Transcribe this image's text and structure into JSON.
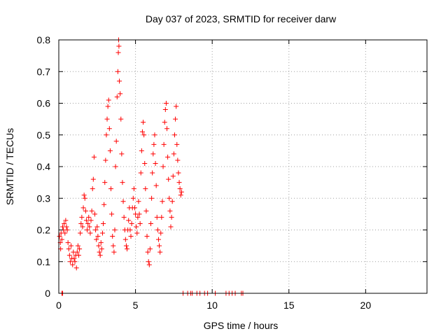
{
  "chart_data": {
    "type": "scatter",
    "title": "Day 037 of 2023, SRMTID for receiver darw",
    "xlabel": "GPS time / hours",
    "ylabel": "SRMTID / TECUs",
    "xlim": [
      0,
      24
    ],
    "ylim": [
      0,
      0.8
    ],
    "x_ticks": [
      0,
      5,
      10,
      15,
      20
    ],
    "x_tick_labels": [
      "0",
      "5",
      "10",
      "15",
      "20"
    ],
    "y_ticks": [
      0,
      0.1,
      0.2,
      0.3,
      0.4,
      0.5,
      0.6,
      0.7,
      0.8
    ],
    "y_tick_labels": [
      "0",
      "0.1",
      "0.2",
      "0.3",
      "0.4",
      "0.5",
      "0.6",
      "0.7",
      "0.8"
    ],
    "grid": true,
    "marker": "+",
    "marker_color": "#ff0000",
    "series": [
      {
        "name": "SRMTID",
        "points": [
          [
            0.05,
            0.18
          ],
          [
            0.1,
            0.16
          ],
          [
            0.12,
            0.14
          ],
          [
            0.15,
            0.19
          ],
          [
            0.2,
            0.17
          ],
          [
            0.25,
            0.21
          ],
          [
            0.3,
            0.2
          ],
          [
            0.35,
            0.22
          ],
          [
            0.4,
            0.19
          ],
          [
            0.45,
            0.23
          ],
          [
            0.5,
            0.21
          ],
          [
            0.55,
            0.2
          ],
          [
            0.6,
            0.16
          ],
          [
            0.65,
            0.14
          ],
          [
            0.7,
            0.12
          ],
          [
            0.75,
            0.1
          ],
          [
            0.8,
            0.15
          ],
          [
            0.85,
            0.11
          ],
          [
            0.9,
            0.09
          ],
          [
            0.95,
            0.13
          ],
          [
            1.0,
            0.11
          ],
          [
            1.05,
            0.1
          ],
          [
            1.1,
            0.12
          ],
          [
            1.15,
            0.08
          ],
          [
            1.2,
            0.13
          ],
          [
            1.25,
            0.15
          ],
          [
            1.3,
            0.12
          ],
          [
            1.35,
            0.14
          ],
          [
            1.4,
            0.19
          ],
          [
            1.45,
            0.22
          ],
          [
            1.5,
            0.24
          ],
          [
            1.55,
            0.21
          ],
          [
            1.6,
            0.27
          ],
          [
            1.65,
            0.31
          ],
          [
            1.7,
            0.3
          ],
          [
            1.75,
            0.26
          ],
          [
            1.8,
            0.23
          ],
          [
            1.85,
            0.2
          ],
          [
            1.9,
            0.22
          ],
          [
            1.95,
            0.24
          ],
          [
            2.0,
            0.21
          ],
          [
            2.05,
            0.19
          ],
          [
            2.1,
            0.23
          ],
          [
            2.15,
            0.26
          ],
          [
            2.2,
            0.33
          ],
          [
            2.25,
            0.36
          ],
          [
            2.3,
            0.43
          ],
          [
            2.35,
            0.25
          ],
          [
            2.4,
            0.2
          ],
          [
            2.45,
            0.17
          ],
          [
            2.5,
            0.21
          ],
          [
            2.55,
            0.18
          ],
          [
            2.6,
            0.15
          ],
          [
            2.65,
            0.13
          ],
          [
            2.7,
            0.12
          ],
          [
            2.75,
            0.16
          ],
          [
            2.8,
            0.14
          ],
          [
            2.85,
            0.19
          ],
          [
            2.9,
            0.22
          ],
          [
            2.95,
            0.28
          ],
          [
            3.0,
            0.35
          ],
          [
            3.05,
            0.42
          ],
          [
            3.1,
            0.5
          ],
          [
            3.15,
            0.55
          ],
          [
            3.2,
            0.59
          ],
          [
            3.25,
            0.61
          ],
          [
            3.3,
            0.52
          ],
          [
            3.35,
            0.45
          ],
          [
            3.4,
            0.33
          ],
          [
            3.45,
            0.25
          ],
          [
            3.5,
            0.18
          ],
          [
            3.55,
            0.15
          ],
          [
            3.6,
            0.13
          ],
          [
            3.65,
            0.2
          ],
          [
            3.7,
            0.4
          ],
          [
            3.75,
            0.48
          ],
          [
            3.8,
            0.62
          ],
          [
            3.85,
            0.7
          ],
          [
            3.88,
            0.76
          ],
          [
            3.9,
            0.8
          ],
          [
            3.92,
            0.78
          ],
          [
            3.95,
            0.67
          ],
          [
            4.0,
            0.63
          ],
          [
            4.05,
            0.55
          ],
          [
            4.1,
            0.44
          ],
          [
            4.15,
            0.35
          ],
          [
            4.2,
            0.29
          ],
          [
            4.25,
            0.24
          ],
          [
            4.3,
            0.2
          ],
          [
            4.35,
            0.17
          ],
          [
            4.4,
            0.15
          ],
          [
            4.45,
            0.14
          ],
          [
            4.5,
            0.2
          ],
          [
            4.55,
            0.23
          ],
          [
            4.6,
            0.27
          ],
          [
            4.65,
            0.2
          ],
          [
            4.7,
            0.18
          ],
          [
            4.75,
            0.22
          ],
          [
            4.8,
            0.27
          ],
          [
            4.85,
            0.3
          ],
          [
            4.9,
            0.33
          ],
          [
            4.95,
            0.27
          ],
          [
            5.0,
            0.25
          ],
          [
            5.05,
            0.21
          ],
          [
            5.1,
            0.19
          ],
          [
            5.15,
            0.24
          ],
          [
            5.2,
            0.29
          ],
          [
            5.25,
            0.25
          ],
          [
            5.3,
            0.22
          ],
          [
            5.35,
            0.38
          ],
          [
            5.4,
            0.45
          ],
          [
            5.45,
            0.51
          ],
          [
            5.5,
            0.54
          ],
          [
            5.55,
            0.5
          ],
          [
            5.6,
            0.41
          ],
          [
            5.65,
            0.33
          ],
          [
            5.7,
            0.26
          ],
          [
            5.75,
            0.18
          ],
          [
            5.8,
            0.13
          ],
          [
            5.85,
            0.1
          ],
          [
            5.9,
            0.09
          ],
          [
            5.95,
            0.14
          ],
          [
            6.0,
            0.22
          ],
          [
            6.05,
            0.3
          ],
          [
            6.1,
            0.38
          ],
          [
            6.15,
            0.44
          ],
          [
            6.2,
            0.47
          ],
          [
            6.25,
            0.5
          ],
          [
            6.3,
            0.41
          ],
          [
            6.35,
            0.34
          ],
          [
            6.4,
            0.24
          ],
          [
            6.45,
            0.2
          ],
          [
            6.5,
            0.17
          ],
          [
            6.55,
            0.15
          ],
          [
            6.6,
            0.13
          ],
          [
            6.65,
            0.19
          ],
          [
            6.7,
            0.24
          ],
          [
            6.75,
            0.29
          ],
          [
            6.8,
            0.4
          ],
          [
            6.85,
            0.47
          ],
          [
            6.9,
            0.54
          ],
          [
            6.95,
            0.58
          ],
          [
            7.0,
            0.6
          ],
          [
            7.05,
            0.52
          ],
          [
            7.1,
            0.43
          ],
          [
            7.15,
            0.36
          ],
          [
            7.2,
            0.3
          ],
          [
            7.25,
            0.26
          ],
          [
            7.3,
            0.21
          ],
          [
            7.35,
            0.24
          ],
          [
            7.4,
            0.29
          ],
          [
            7.45,
            0.37
          ],
          [
            7.5,
            0.44
          ],
          [
            7.55,
            0.5
          ],
          [
            7.6,
            0.55
          ],
          [
            7.65,
            0.59
          ],
          [
            7.7,
            0.47
          ],
          [
            7.75,
            0.42
          ],
          [
            7.8,
            0.38
          ],
          [
            7.85,
            0.35
          ],
          [
            7.9,
            0.33
          ],
          [
            7.95,
            0.31
          ],
          [
            8.0,
            0.32
          ],
          [
            0.2,
            0.0
          ],
          [
            0.25,
            0.0
          ],
          [
            8.1,
            0.0
          ],
          [
            8.4,
            0.0
          ],
          [
            8.6,
            0.0
          ],
          [
            8.7,
            0.0
          ],
          [
            9.0,
            0.0
          ],
          [
            9.2,
            0.0
          ],
          [
            9.5,
            0.0
          ],
          [
            9.7,
            0.0
          ],
          [
            10.2,
            0.0
          ],
          [
            10.9,
            0.0
          ],
          [
            11.1,
            0.0
          ],
          [
            11.3,
            0.0
          ],
          [
            11.5,
            0.0
          ],
          [
            11.9,
            0.0
          ],
          [
            12.0,
            0.0
          ]
        ]
      }
    ]
  }
}
